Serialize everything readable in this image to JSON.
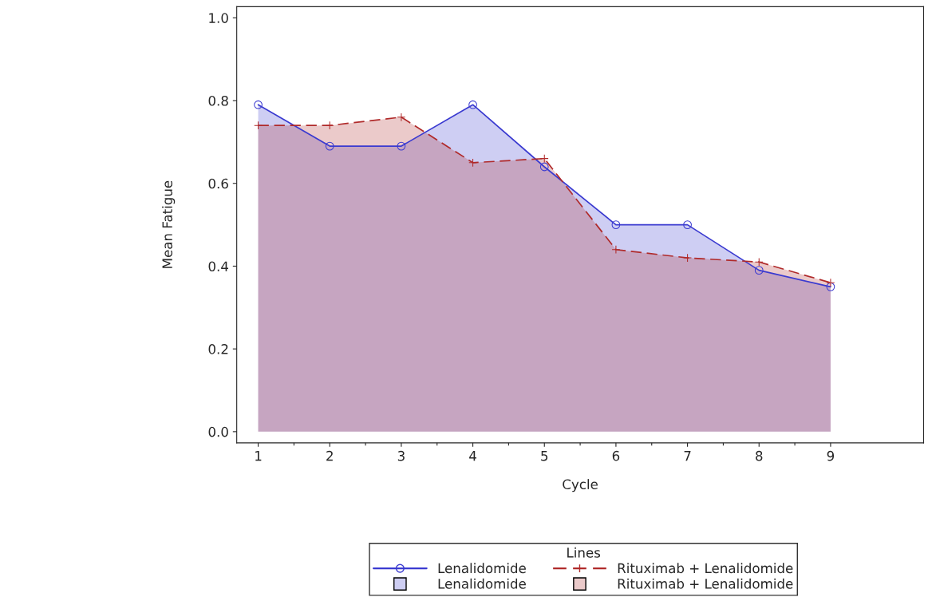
{
  "chart_data": {
    "type": "area",
    "xlabel": "Cycle",
    "ylabel": "Mean Fatigue",
    "legend_title": "Lines",
    "legend": "bottom",
    "x": [
      1,
      2,
      3,
      4,
      5,
      6,
      7,
      8,
      9
    ],
    "series": [
      {
        "name": "Lenalidomide",
        "color": "#3a3ad0",
        "marker": "circle",
        "line_style": "solid",
        "values": [
          0.79,
          0.69,
          0.69,
          0.79,
          0.64,
          0.5,
          0.5,
          0.39,
          0.35
        ]
      },
      {
        "name": "Rituximab + Lenalidomide",
        "color": "#b02a2a",
        "marker": "cross",
        "line_style": "dashed",
        "values": [
          0.74,
          0.74,
          0.76,
          0.65,
          0.66,
          0.44,
          0.42,
          0.41,
          0.36
        ]
      }
    ],
    "xlim": [
      0.7,
      10.3
    ],
    "xticks": [
      1,
      {
        "value": 1.5,
        "label": null
      },
      2,
      {
        "value": 2.5,
        "label": null
      },
      3,
      {
        "value": 3.5,
        "label": null
      },
      4,
      {
        "value": 4.5,
        "label": null
      },
      5,
      {
        "value": 5.5,
        "label": null
      },
      6,
      {
        "value": 6.5,
        "label": null
      },
      7,
      {
        "value": 7.5,
        "label": null
      },
      8,
      {
        "value": 8.5,
        "label": null
      },
      9
    ],
    "ylim": [
      -0.027,
      1.027
    ],
    "yticks": [
      {
        "value": 0,
        "label": "0.0"
      },
      0.2,
      0.4,
      0.6,
      0.8,
      {
        "value": 1,
        "label": "1.0"
      }
    ],
    "grid": false
  }
}
